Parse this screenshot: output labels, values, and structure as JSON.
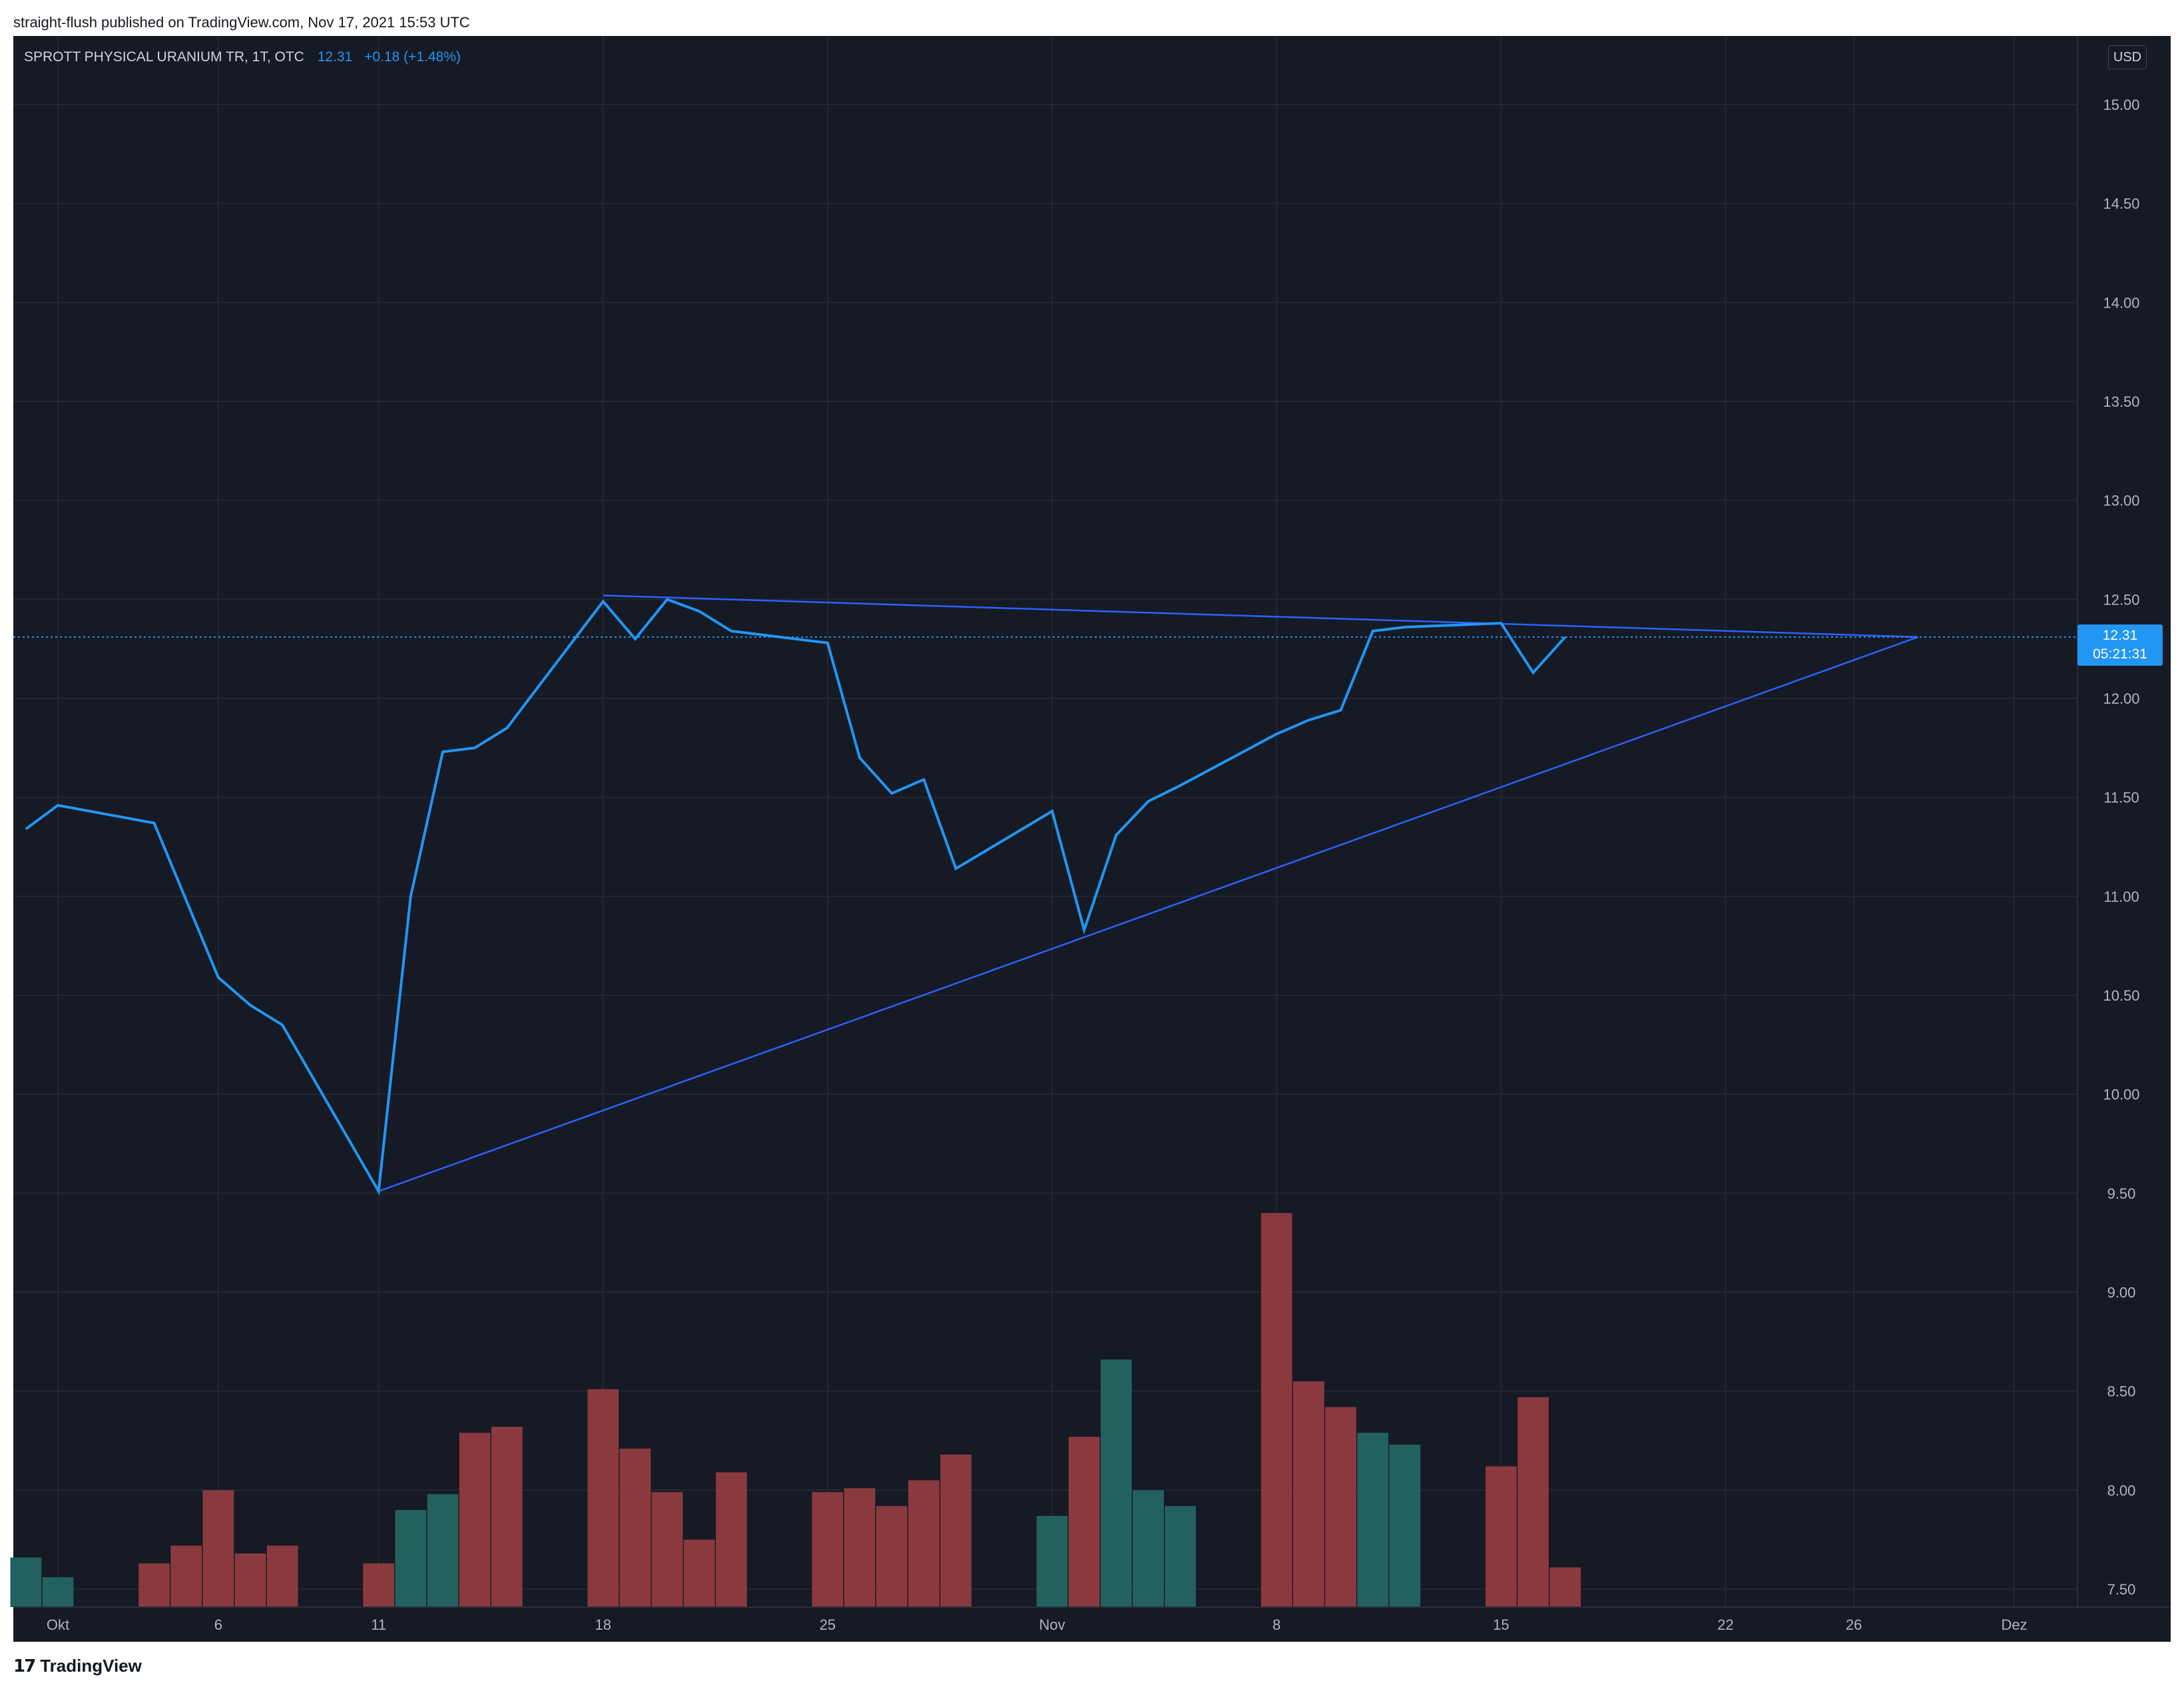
{
  "header": {
    "published_text": "straight-flush published on TradingView.com, Nov 17, 2021 15:53 UTC"
  },
  "symbol": {
    "name": "SPROTT PHYSICAL URANIUM TR, 1T, OTC",
    "price": "12.31",
    "change": "+0.18 (+1.48%)"
  },
  "currency_badge": "USD",
  "price_tag": {
    "price": "12.31",
    "countdown": "05:21:31"
  },
  "footer": {
    "logo_glyph": "17",
    "brand": "TradingView"
  },
  "colors": {
    "background": "#161a25",
    "line": "#2196f3",
    "trendline": "#2962ff",
    "volume_up": "#22615e",
    "volume_down": "#8a3a3f",
    "grid": "#232733"
  },
  "chart_data": {
    "type": "line",
    "title": "SPROTT PHYSICAL URANIUM TR, 1T, OTC",
    "ylim": [
      7.4,
      15.35
    ],
    "y_ticks": [
      "15.00",
      "14.50",
      "14.00",
      "13.50",
      "13.00",
      "12.50",
      "12.00",
      "11.50",
      "11.00",
      "10.50",
      "10.00",
      "9.50",
      "9.00",
      "8.50",
      "8.00",
      "7.50"
    ],
    "x_ticks": [
      {
        "label": "Okt",
        "date": "2021-10-01"
      },
      {
        "label": "6",
        "date": "2021-10-06"
      },
      {
        "label": "11",
        "date": "2021-10-11"
      },
      {
        "label": "18",
        "date": "2021-10-18"
      },
      {
        "label": "25",
        "date": "2021-10-25"
      },
      {
        "label": "Nov",
        "date": "2021-11-01"
      },
      {
        "label": "8",
        "date": "2021-11-08"
      },
      {
        "label": "15",
        "date": "2021-11-15"
      },
      {
        "label": "22",
        "date": "2021-11-22"
      },
      {
        "label": "26",
        "date": "2021-11-26"
      },
      {
        "label": "Dez",
        "date": "2021-12-01"
      }
    ],
    "x_range": [
      "2021-09-30",
      "2021-12-03"
    ],
    "series": [
      {
        "name": "SPROTT PHYSICAL URANIUM TR",
        "points": [
          [
            "2021-09-30",
            11.34
          ],
          [
            "2021-10-01",
            11.46
          ],
          [
            "2021-10-04",
            11.37
          ],
          [
            "2021-10-05",
            10.98
          ],
          [
            "2021-10-06",
            10.59
          ],
          [
            "2021-10-07",
            10.45
          ],
          [
            "2021-10-08",
            10.35
          ],
          [
            "2021-10-11",
            9.51
          ],
          [
            "2021-10-12",
            11.0
          ],
          [
            "2021-10-13",
            11.73
          ],
          [
            "2021-10-14",
            11.75
          ],
          [
            "2021-10-15",
            11.85
          ],
          [
            "2021-10-18",
            12.49
          ],
          [
            "2021-10-19",
            12.3
          ],
          [
            "2021-10-20",
            12.5
          ],
          [
            "2021-10-21",
            12.44
          ],
          [
            "2021-10-22",
            12.34
          ],
          [
            "2021-10-25",
            12.28
          ],
          [
            "2021-10-26",
            11.7
          ],
          [
            "2021-10-27",
            11.52
          ],
          [
            "2021-10-28",
            11.59
          ],
          [
            "2021-10-29",
            11.14
          ],
          [
            "2021-11-01",
            11.43
          ],
          [
            "2021-11-02",
            10.83
          ],
          [
            "2021-11-03",
            11.31
          ],
          [
            "2021-11-04",
            11.48
          ],
          [
            "2021-11-05",
            11.56
          ],
          [
            "2021-11-08",
            11.82
          ],
          [
            "2021-11-09",
            11.89
          ],
          [
            "2021-11-10",
            11.94
          ],
          [
            "2021-11-11",
            12.34
          ],
          [
            "2021-11-12",
            12.36
          ],
          [
            "2021-11-15",
            12.38
          ],
          [
            "2021-11-16",
            12.13
          ],
          [
            "2021-11-17",
            12.31
          ]
        ]
      }
    ],
    "volume": {
      "bars": [
        {
          "date": "2021-09-30",
          "top": 7.66,
          "up": true
        },
        {
          "date": "2021-10-01",
          "top": 7.56,
          "up": true
        },
        {
          "date": "2021-10-04",
          "top": 7.63,
          "up": false
        },
        {
          "date": "2021-10-05",
          "top": 7.72,
          "up": false
        },
        {
          "date": "2021-10-06",
          "top": 8.0,
          "up": false
        },
        {
          "date": "2021-10-07",
          "top": 7.68,
          "up": false
        },
        {
          "date": "2021-10-08",
          "top": 7.72,
          "up": false
        },
        {
          "date": "2021-10-11",
          "top": 7.63,
          "up": false
        },
        {
          "date": "2021-10-12",
          "top": 7.9,
          "up": true
        },
        {
          "date": "2021-10-13",
          "top": 7.98,
          "up": true
        },
        {
          "date": "2021-10-14",
          "top": 8.29,
          "up": false
        },
        {
          "date": "2021-10-15",
          "top": 8.32,
          "up": false
        },
        {
          "date": "2021-10-18",
          "top": 8.51,
          "up": false
        },
        {
          "date": "2021-10-19",
          "top": 8.21,
          "up": false
        },
        {
          "date": "2021-10-20",
          "top": 7.99,
          "up": false
        },
        {
          "date": "2021-10-21",
          "top": 7.75,
          "up": false
        },
        {
          "date": "2021-10-22",
          "top": 8.09,
          "up": false
        },
        {
          "date": "2021-10-25",
          "top": 7.99,
          "up": false
        },
        {
          "date": "2021-10-26",
          "top": 8.01,
          "up": false
        },
        {
          "date": "2021-10-27",
          "top": 7.92,
          "up": false
        },
        {
          "date": "2021-10-28",
          "top": 8.05,
          "up": false
        },
        {
          "date": "2021-10-29",
          "top": 8.18,
          "up": false
        },
        {
          "date": "2021-11-01",
          "top": 7.87,
          "up": true
        },
        {
          "date": "2021-11-02",
          "top": 8.27,
          "up": false
        },
        {
          "date": "2021-11-03",
          "top": 8.66,
          "up": true
        },
        {
          "date": "2021-11-04",
          "top": 8.0,
          "up": true
        },
        {
          "date": "2021-11-05",
          "top": 7.92,
          "up": true
        },
        {
          "date": "2021-11-08",
          "top": 9.4,
          "up": false
        },
        {
          "date": "2021-11-09",
          "top": 8.55,
          "up": false
        },
        {
          "date": "2021-11-10",
          "top": 8.42,
          "up": false
        },
        {
          "date": "2021-11-11",
          "top": 8.29,
          "up": true
        },
        {
          "date": "2021-11-12",
          "top": 8.23,
          "up": true
        },
        {
          "date": "2021-11-15",
          "top": 8.12,
          "up": false
        },
        {
          "date": "2021-11-16",
          "top": 8.47,
          "up": false
        },
        {
          "date": "2021-11-17",
          "top": 7.61,
          "up": false
        }
      ]
    },
    "trendlines": [
      {
        "from": [
          "2021-10-18",
          12.52
        ],
        "to": [
          "2021-11-28",
          12.31
        ]
      },
      {
        "from": [
          "2021-10-11",
          9.51
        ],
        "to": [
          "2021-11-28",
          12.31
        ]
      }
    ],
    "last_price_line": 12.31,
    "grid": true
  }
}
